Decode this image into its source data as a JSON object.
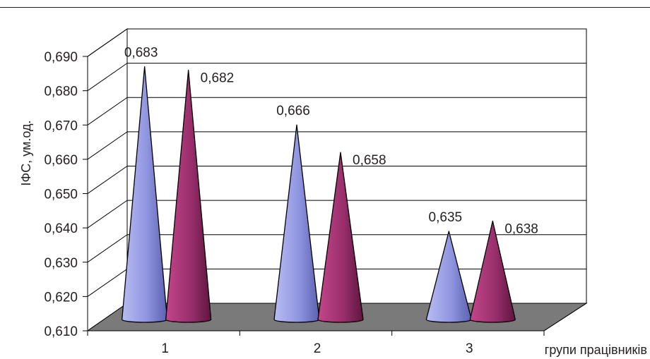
{
  "chart_data": {
    "type": "bar",
    "style": "3d-cone",
    "ylabel": "ІФС, ум.од.",
    "xlabel": "групи працівників",
    "categories": [
      "1",
      "2",
      "3"
    ],
    "ylim": [
      0.61,
      0.69
    ],
    "yticks": [
      "0,610",
      "0,620",
      "0,630",
      "0,640",
      "0,650",
      "0,660",
      "0,670",
      "0,680",
      "0,690"
    ],
    "grid": true,
    "series": [
      {
        "color": "#9a9ee6",
        "values": [
          0.683,
          0.666,
          0.635
        ],
        "labels": [
          "0,683",
          "0,666",
          "0,635"
        ]
      },
      {
        "color": "#9a2f6c",
        "values": [
          0.682,
          0.658,
          0.638
        ],
        "labels": [
          "0,682",
          "0,658",
          "0,638"
        ]
      }
    ],
    "floor_color": "#7a7a7a"
  }
}
